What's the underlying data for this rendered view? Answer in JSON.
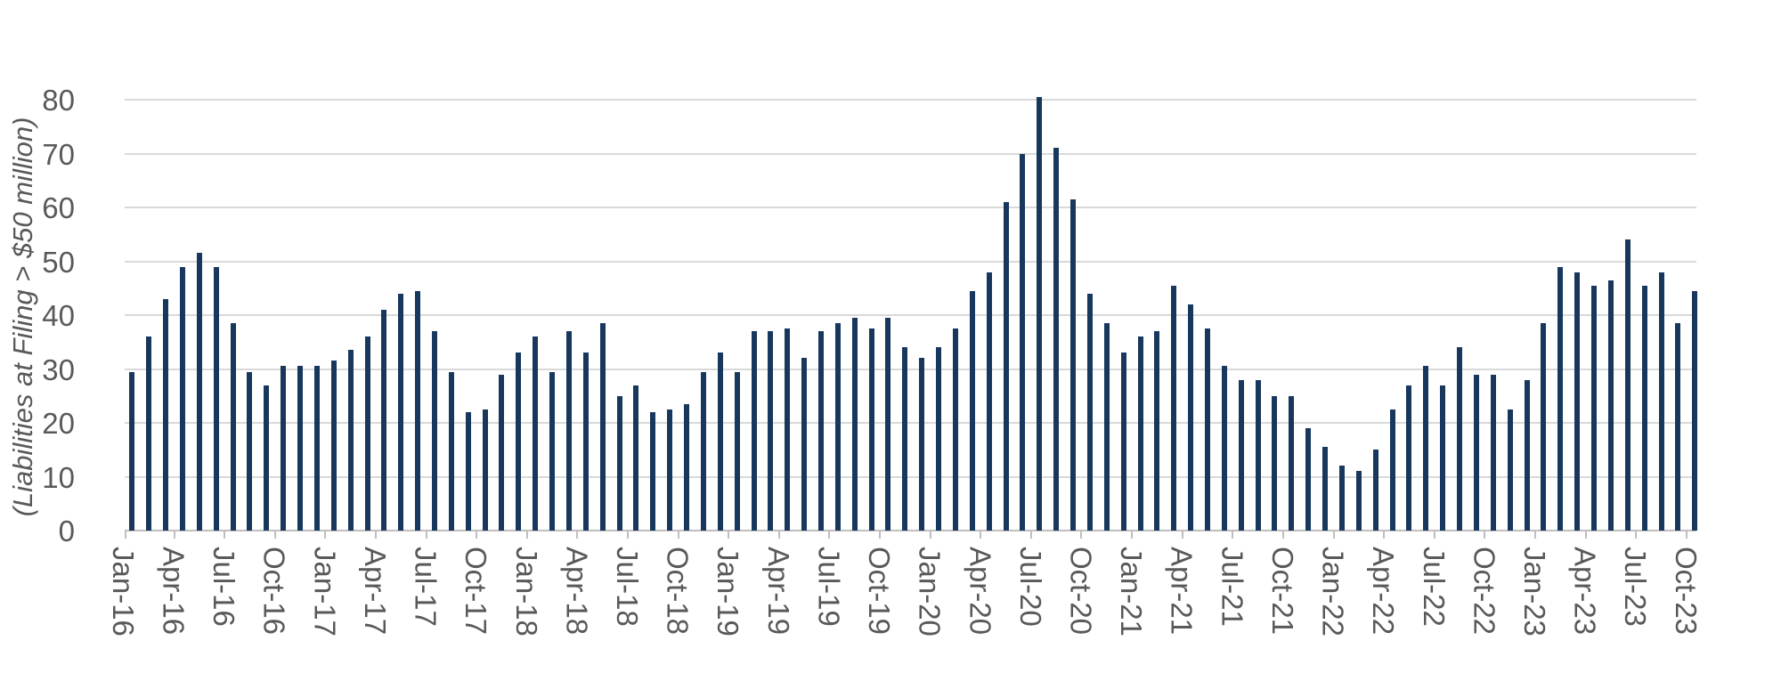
{
  "chart_data": {
    "type": "bar",
    "title": "",
    "xlabel": "",
    "ylabel": "(Liabilities at Filing > $50 million)",
    "ylim": [
      0,
      80
    ],
    "yticks": [
      0,
      10,
      20,
      30,
      40,
      50,
      60,
      70,
      80
    ],
    "grid": "horizontal",
    "legend_position": "none",
    "categories": [
      "Jan-16",
      "Feb-16",
      "Mar-16",
      "Apr-16",
      "May-16",
      "Jun-16",
      "Jul-16",
      "Aug-16",
      "Sep-16",
      "Oct-16",
      "Nov-16",
      "Dec-16",
      "Jan-17",
      "Feb-17",
      "Mar-17",
      "Apr-17",
      "May-17",
      "Jun-17",
      "Jul-17",
      "Aug-17",
      "Sep-17",
      "Oct-17",
      "Nov-17",
      "Dec-17",
      "Jan-18",
      "Feb-18",
      "Mar-18",
      "Apr-18",
      "May-18",
      "Jun-18",
      "Jul-18",
      "Aug-18",
      "Sep-18",
      "Oct-18",
      "Nov-18",
      "Dec-18",
      "Jan-19",
      "Feb-19",
      "Mar-19",
      "Apr-19",
      "May-19",
      "Jun-19",
      "Jul-19",
      "Aug-19",
      "Sep-19",
      "Oct-19",
      "Nov-19",
      "Dec-19",
      "Jan-20",
      "Feb-20",
      "Mar-20",
      "Apr-20",
      "May-20",
      "Jun-20",
      "Jul-20",
      "Aug-20",
      "Sep-20",
      "Oct-20",
      "Nov-20",
      "Dec-20",
      "Jan-21",
      "Feb-21",
      "Mar-21",
      "Apr-21",
      "May-21",
      "Jun-21",
      "Jul-21",
      "Aug-21",
      "Sep-21",
      "Oct-21",
      "Nov-21",
      "Dec-21",
      "Jan-22",
      "Feb-22",
      "Mar-22",
      "Apr-22",
      "May-22",
      "Jun-22",
      "Jul-22",
      "Aug-22",
      "Sep-22",
      "Oct-22",
      "Nov-22",
      "Dec-22",
      "Jan-23",
      "Feb-23",
      "Mar-23",
      "Apr-23",
      "May-23",
      "Jun-23",
      "Jul-23",
      "Aug-23",
      "Sep-23",
      "Oct-23"
    ],
    "values": [
      29.5,
      36,
      43,
      49,
      51.5,
      49,
      38.5,
      29.5,
      27,
      30.5,
      30.5,
      30.5,
      31.5,
      33.5,
      36,
      41,
      44,
      44.5,
      37,
      29.5,
      22,
      22.5,
      29,
      33,
      36,
      29.5,
      37,
      33,
      38.5,
      25,
      27,
      22,
      22.5,
      23.5,
      29.5,
      33,
      29.5,
      37,
      37,
      37.5,
      32,
      37,
      38.5,
      39.5,
      37.5,
      39.5,
      34,
      32,
      34,
      37.5,
      44.5,
      48,
      61,
      70,
      80.5,
      71,
      61.5,
      44,
      38.5,
      33,
      36,
      37,
      45.5,
      42,
      37.5,
      30.5,
      28,
      28,
      25,
      25,
      19,
      15.5,
      12,
      11,
      15,
      22.5,
      27,
      30.5,
      27,
      34,
      29,
      29,
      22.5,
      28,
      38.5,
      49,
      48,
      45.5,
      46.5,
      54,
      45.5,
      48,
      38.5,
      44.5
    ],
    "xtick_labels": [
      "Jan-16",
      "Apr-16",
      "Jul-16",
      "Oct-16",
      "Jan-17",
      "Apr-17",
      "Jul-17",
      "Oct-17",
      "Jan-18",
      "Apr-18",
      "Jul-18",
      "Oct-18",
      "Jan-19",
      "Apr-19",
      "Jul-19",
      "Oct-19",
      "Jan-20",
      "Apr-20",
      "Jul-20",
      "Oct-20",
      "Jan-21",
      "Apr-21",
      "Jul-21",
      "Oct-21",
      "Jan-22",
      "Apr-22",
      "Jul-22",
      "Oct-22",
      "Jan-23",
      "Apr-23",
      "Jul-23",
      "Oct-23"
    ],
    "xtick_interval_months": 3
  },
  "colors": {
    "bar": "#17375d",
    "gridline": "#d9d9d9",
    "axis_line": "#bfbfbf",
    "tick_label": "#595959",
    "background": "#ffffff"
  }
}
